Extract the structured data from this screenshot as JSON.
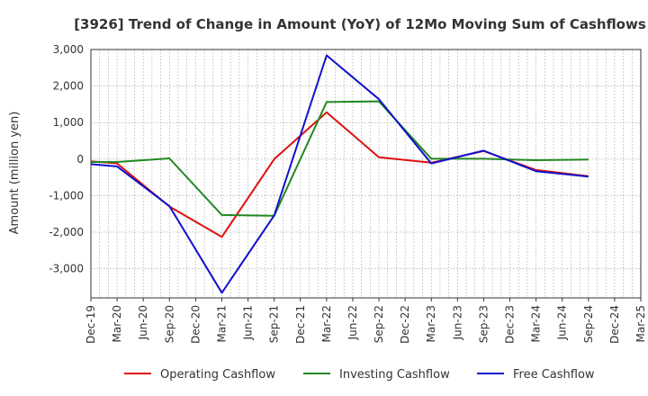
{
  "chart_data": {
    "type": "line",
    "title": "[3926]  Trend of Change in Amount (YoY) of 12Mo Moving Sum of Cashflows",
    "xlabel": "",
    "ylabel": "Amount (million yen)",
    "ylim": [
      -3800,
      3000
    ],
    "yticks": [
      3000,
      2000,
      1000,
      0,
      -1000,
      -2000,
      -3000
    ],
    "ytick_labels": [
      "3,000",
      "2,000",
      "1,000",
      "0",
      "-1,000",
      "-2,000",
      "-3,000"
    ],
    "categories": [
      "Dec-19",
      "Mar-20",
      "Jun-20",
      "Sep-20",
      "Dec-20",
      "Mar-21",
      "Jun-21",
      "Sep-21",
      "Dec-21",
      "Mar-22",
      "Jun-22",
      "Sep-22",
      "Dec-22",
      "Mar-23",
      "Jun-23",
      "Sep-23",
      "Dec-23",
      "Mar-24",
      "Jun-24",
      "Sep-24",
      "Dec-24",
      "Mar-25"
    ],
    "grid": true,
    "legend_position": "bottom",
    "series": [
      {
        "name": "Operating Cashflow",
        "color": "#dd1111",
        "values": [
          -60,
          -120,
          null,
          -1300,
          null,
          -2130,
          null,
          0,
          null,
          1280,
          null,
          50,
          null,
          -100,
          null,
          220,
          null,
          -300,
          null,
          -470,
          null,
          null
        ]
      },
      {
        "name": "Investing Cashflow",
        "color": "#228822",
        "values": [
          -80,
          -80,
          null,
          20,
          null,
          -1530,
          null,
          -1550,
          null,
          1560,
          null,
          1580,
          null,
          10,
          null,
          10,
          null,
          -30,
          null,
          -10,
          null,
          null
        ]
      },
      {
        "name": "Free Cashflow",
        "color": "#1111cc",
        "values": [
          -140,
          -200,
          null,
          -1290,
          null,
          -3660,
          null,
          -1540,
          null,
          2840,
          null,
          1640,
          null,
          -120,
          null,
          230,
          null,
          -330,
          null,
          -480,
          null,
          null
        ]
      }
    ]
  }
}
